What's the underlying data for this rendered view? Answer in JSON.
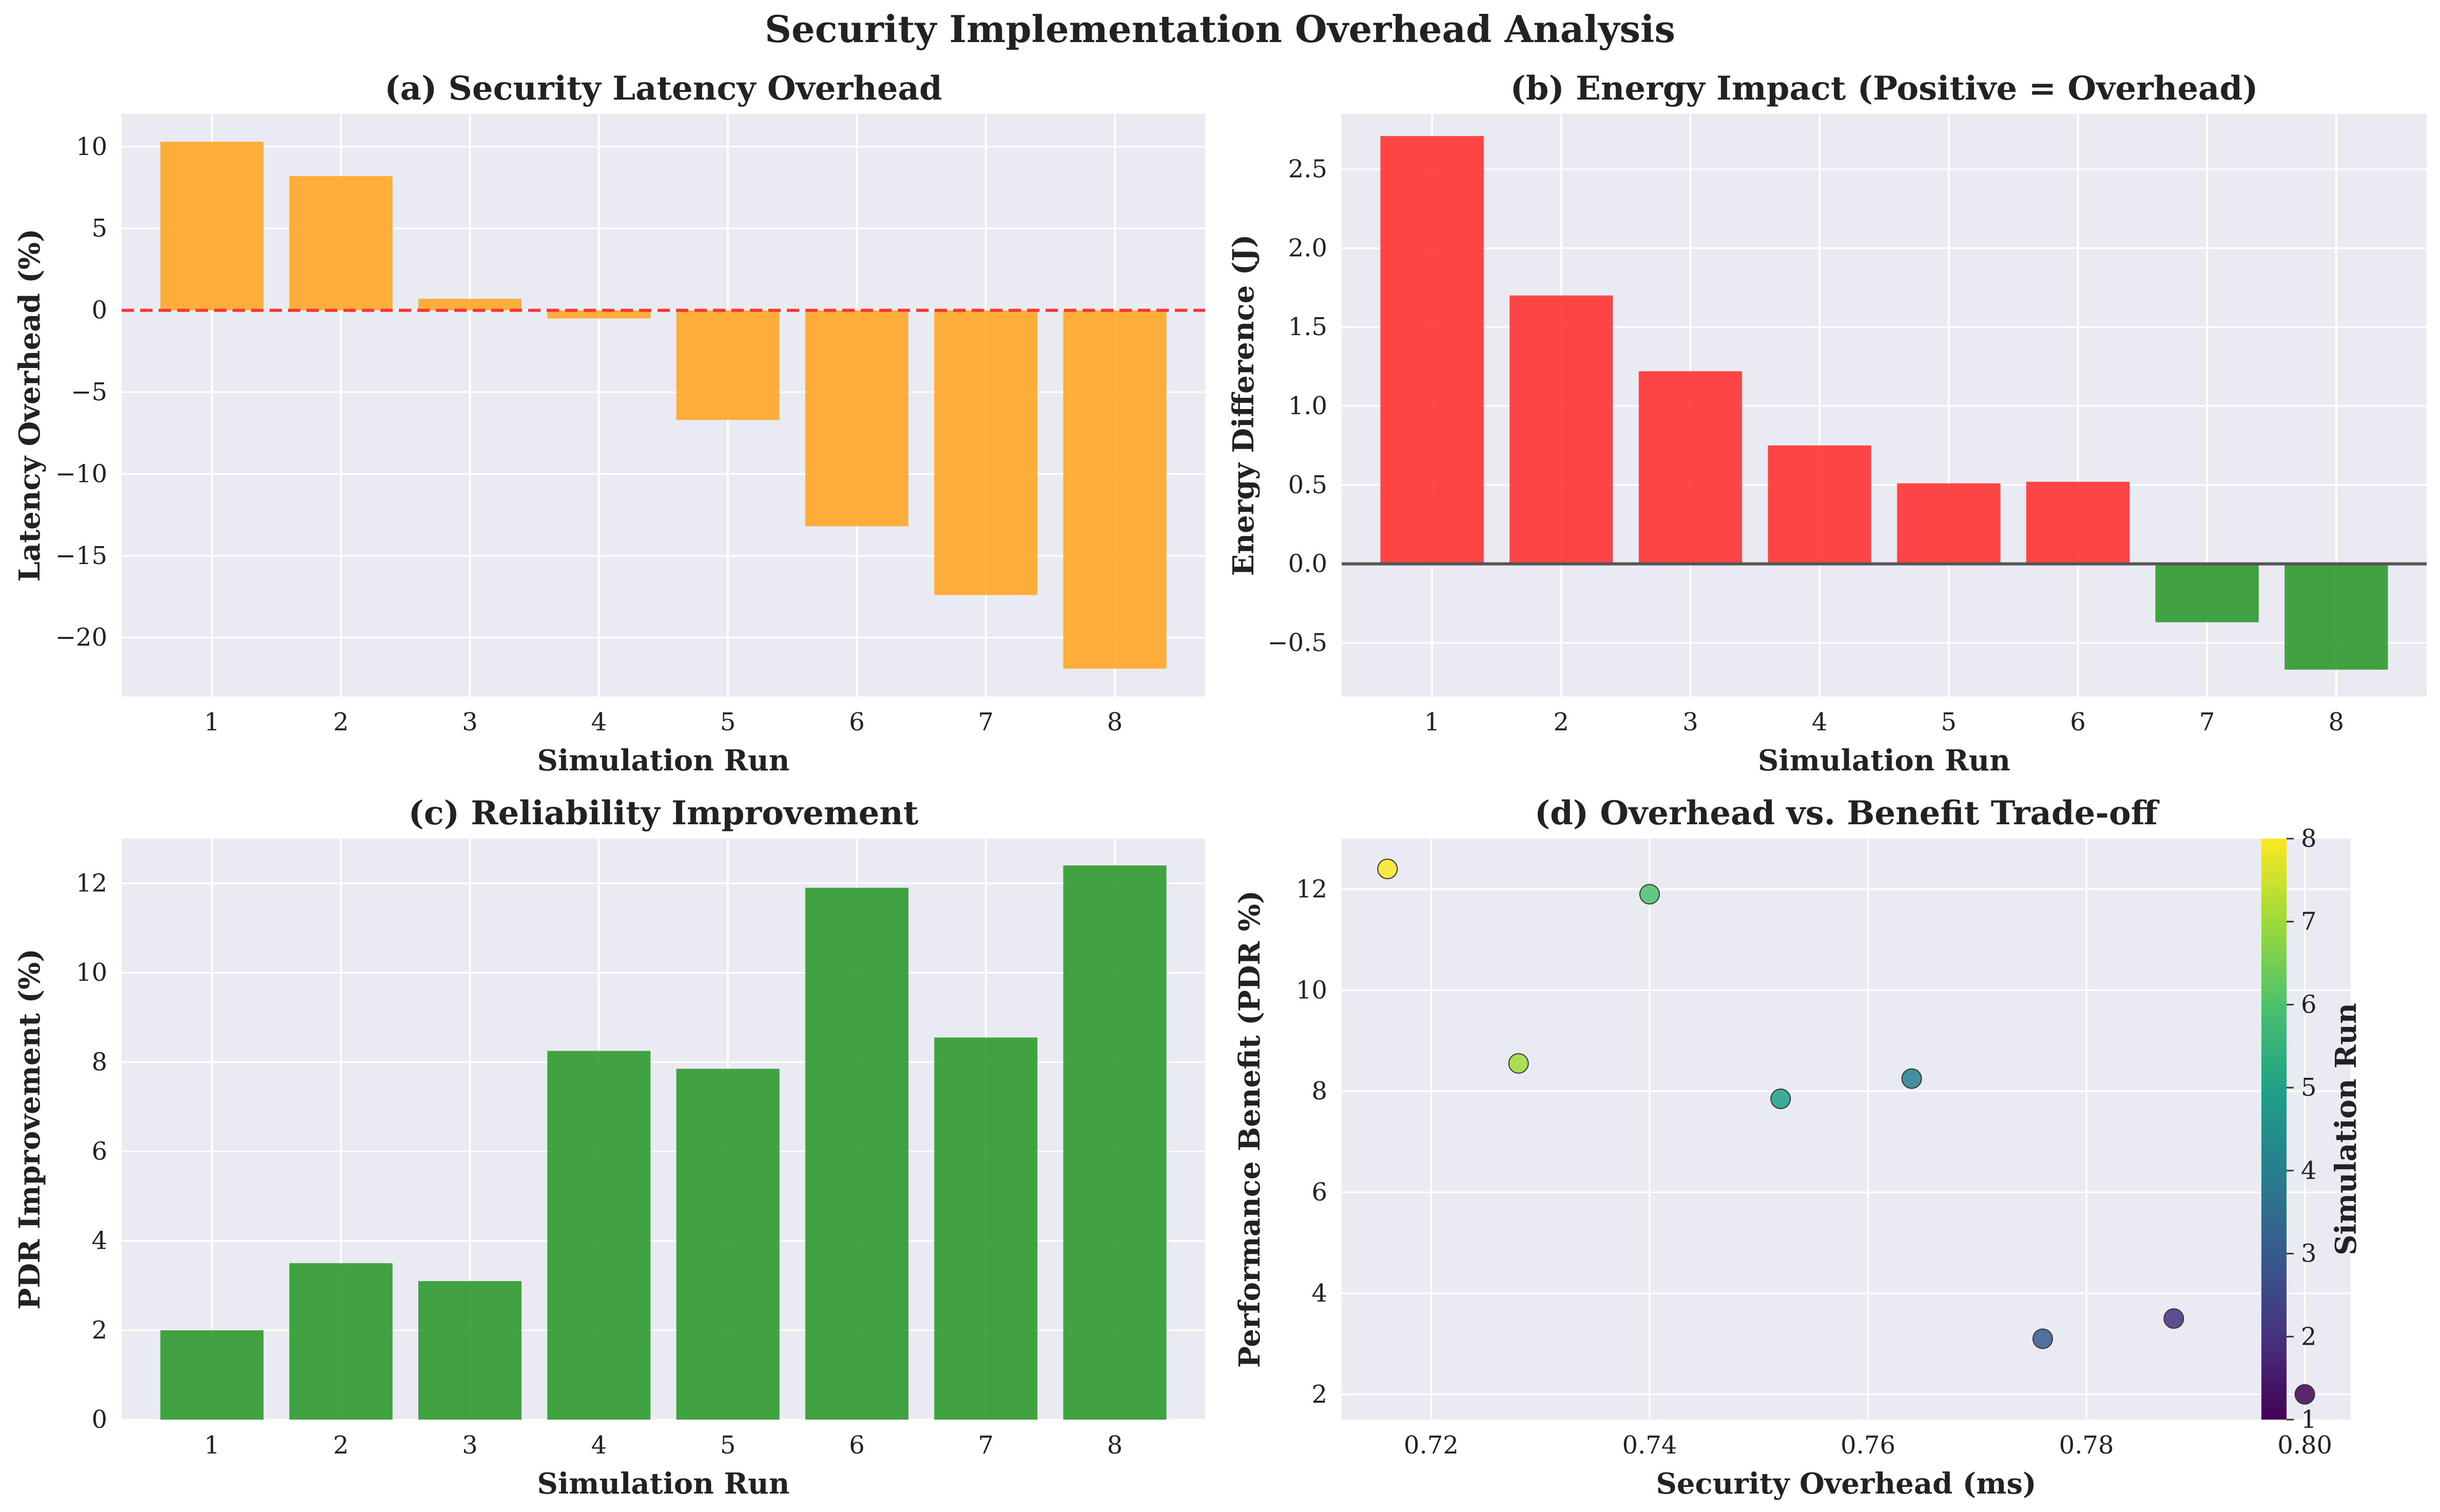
{
  "figure": {
    "suptitle": "Security Implementation Overhead Analysis",
    "background": "#ffffff",
    "axes_background": "#eaeaf2",
    "grid_color": "#ffffff"
  },
  "chart_data": [
    {
      "id": "a",
      "type": "bar",
      "title": "(a) Security Latency Overhead",
      "xlabel": "Simulation Run",
      "ylabel": "Latency Overhead (%)",
      "categories": [
        "1",
        "2",
        "3",
        "4",
        "5",
        "6",
        "7",
        "8"
      ],
      "values": [
        10.3,
        8.2,
        0.7,
        -0.5,
        -6.7,
        -13.2,
        -17.4,
        -21.9
      ],
      "bar_color": "#ffa726",
      "ylim": [
        -23.6,
        12
      ],
      "yticks": [
        10,
        5,
        0,
        -5,
        -10,
        -15,
        -20
      ],
      "ytick_labels": [
        "10",
        "5",
        "0",
        "−5",
        "−10",
        "−15",
        "−20"
      ],
      "reference_line": {
        "y": 0,
        "color": "#ff3333",
        "style": "dashed"
      },
      "grid": true
    },
    {
      "id": "b",
      "type": "bar",
      "title": "(b) Energy Impact (Positive = Overhead)",
      "xlabel": "Simulation Run",
      "ylabel": "Energy Difference (J)",
      "categories": [
        "1",
        "2",
        "3",
        "4",
        "5",
        "6",
        "7",
        "8"
      ],
      "values": [
        2.71,
        1.7,
        1.22,
        0.75,
        0.51,
        0.52,
        -0.37,
        -0.67
      ],
      "positive_color": "#ff3333",
      "negative_color": "#2e9a2e",
      "ylim": [
        -0.84,
        2.85
      ],
      "yticks": [
        2.5,
        2.0,
        1.5,
        1.0,
        0.5,
        0.0,
        -0.5
      ],
      "ytick_labels": [
        "2.5",
        "2.0",
        "1.5",
        "1.0",
        "0.5",
        "0.0",
        "−0.5"
      ],
      "reference_line": {
        "y": 0,
        "color": "#555555",
        "style": "solid"
      },
      "grid": true
    },
    {
      "id": "c",
      "type": "bar",
      "title": "(c) Reliability Improvement",
      "xlabel": "Simulation Run",
      "ylabel": "PDR Improvement (%)",
      "categories": [
        "1",
        "2",
        "3",
        "4",
        "5",
        "6",
        "7",
        "8"
      ],
      "values": [
        2.0,
        3.5,
        3.1,
        8.25,
        7.85,
        11.9,
        8.55,
        12.4
      ],
      "bar_color": "#2e9a2e",
      "ylim": [
        0,
        13.0
      ],
      "yticks": [
        0,
        2,
        4,
        6,
        8,
        10,
        12
      ],
      "ytick_labels": [
        "0",
        "2",
        "4",
        "6",
        "8",
        "10",
        "12"
      ],
      "grid": true
    },
    {
      "id": "d",
      "type": "scatter",
      "title": "(d) Overhead vs. Benefit Trade-off",
      "xlabel": "Security Overhead (ms)",
      "ylabel": "Performance Benefit (PDR %)",
      "points": [
        {
          "run": 1,
          "x": 0.8,
          "y": 2.0
        },
        {
          "run": 2,
          "x": 0.788,
          "y": 3.5
        },
        {
          "run": 3,
          "x": 0.776,
          "y": 3.1
        },
        {
          "run": 4,
          "x": 0.764,
          "y": 8.25
        },
        {
          "run": 5,
          "x": 0.752,
          "y": 7.85
        },
        {
          "run": 6,
          "x": 0.74,
          "y": 11.9
        },
        {
          "run": 7,
          "x": 0.728,
          "y": 8.55
        },
        {
          "run": 8,
          "x": 0.716,
          "y": 12.4
        }
      ],
      "xlim": [
        0.7118,
        0.8042
      ],
      "ylim": [
        1.5,
        13.0
      ],
      "xticks": [
        0.72,
        0.74,
        0.76,
        0.78,
        0.8
      ],
      "xtick_labels": [
        "0.72",
        "0.74",
        "0.76",
        "0.78",
        "0.80"
      ],
      "yticks": [
        2,
        4,
        6,
        8,
        10,
        12
      ],
      "ytick_labels": [
        "2",
        "4",
        "6",
        "8",
        "10",
        "12"
      ],
      "colorbar": {
        "label": "Simulation Run",
        "range": [
          1,
          8
        ],
        "ticks": [
          "1",
          "2",
          "3",
          "4",
          "5",
          "6",
          "7",
          "8"
        ],
        "colormap": "viridis"
      },
      "grid": true
    }
  ]
}
